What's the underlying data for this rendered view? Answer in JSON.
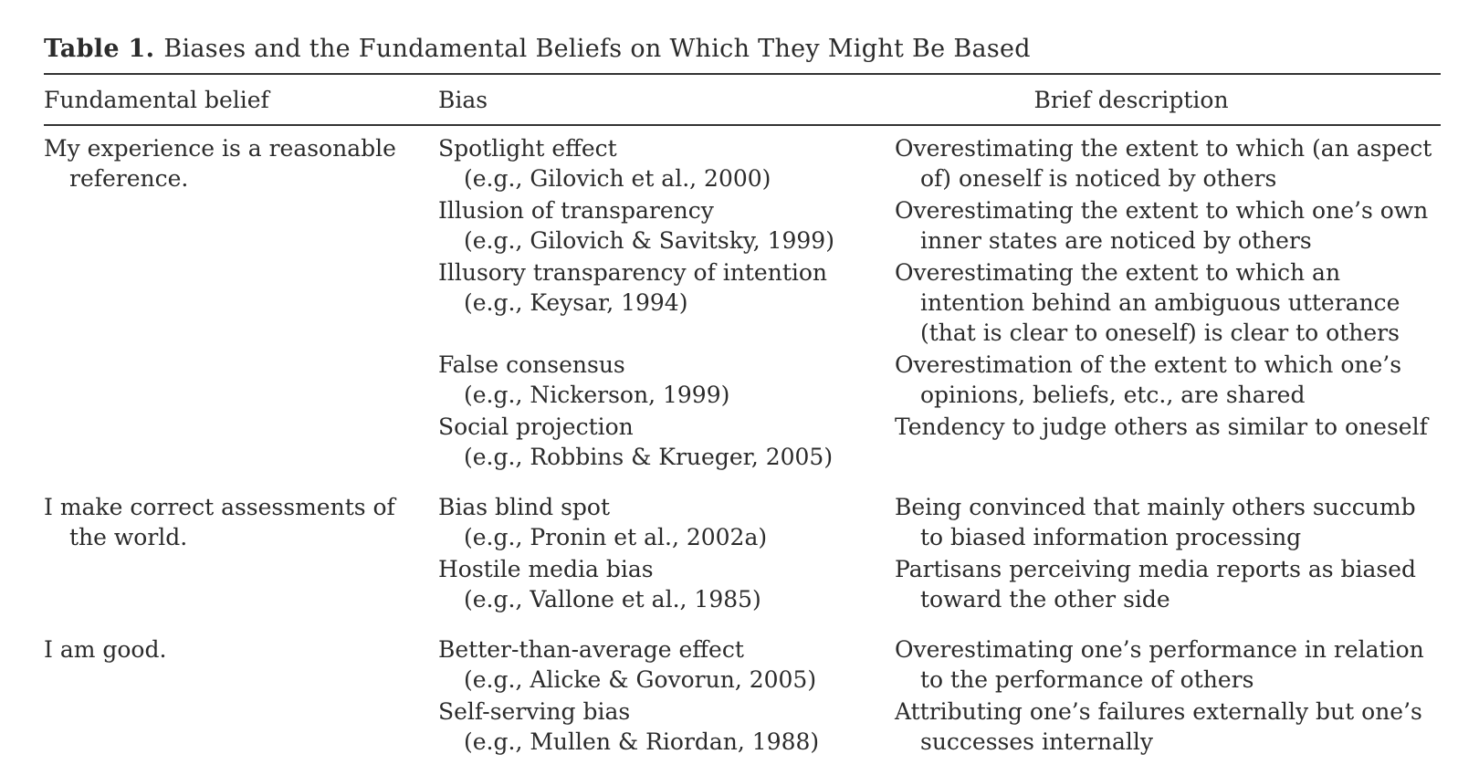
{
  "caption": {
    "label": "Table 1.",
    "title": "Biases and the Fundamental Beliefs on Which They Might Be Based"
  },
  "headers": {
    "belief": "Fundamental belief",
    "bias": "Bias",
    "description": "Brief description"
  },
  "groups": [
    {
      "belief": "My experience is a reasonable reference.",
      "rows": [
        {
          "bias": "Spotlight effect",
          "citation": "(e.g., Gilovich et al., 2000)",
          "description": "Overestimating the extent to which (an aspect of) oneself is noticed by others"
        },
        {
          "bias": "Illusion of transparency",
          "citation": "(e.g., Gilovich & Savitsky, 1999)",
          "description": "Overestimating the extent to which one’s own inner states are noticed by others"
        },
        {
          "bias": "Illusory transparency of intention",
          "citation": "(e.g., Keysar, 1994)",
          "description": "Overestimating the extent to which an intention behind an ambiguous utterance (that is clear to oneself) is clear to others"
        },
        {
          "bias": "False consensus",
          "citation": "(e.g., Nickerson, 1999)",
          "description": "Overestimation of the extent to which one’s opinions, beliefs, etc., are shared"
        },
        {
          "bias": "Social projection",
          "citation": "(e.g., Robbins & Krueger, 2005)",
          "description": "Tendency to judge others as similar to oneself"
        }
      ]
    },
    {
      "belief": "I make correct assessments of the world.",
      "rows": [
        {
          "bias": "Bias blind spot",
          "citation": "(e.g., Pronin et al., 2002a)",
          "description": "Being convinced that mainly others succumb to biased information processing"
        },
        {
          "bias": "Hostile media bias",
          "citation": "(e.g., Vallone et al., 1985)",
          "description": "Partisans perceiving media reports as biased toward the other side"
        }
      ]
    },
    {
      "belief": "I am good.",
      "rows": [
        {
          "bias": "Better-than-average effect",
          "citation": "(e.g., Alicke & Govorun, 2005)",
          "description": "Overestimating one’s performance in relation to the performance of others"
        },
        {
          "bias": "Self-serving bias",
          "citation": "(e.g., Mullen & Riordan, 1988)",
          "description": "Attributing one’s failures externally but one’s successes internally"
        }
      ]
    }
  ]
}
